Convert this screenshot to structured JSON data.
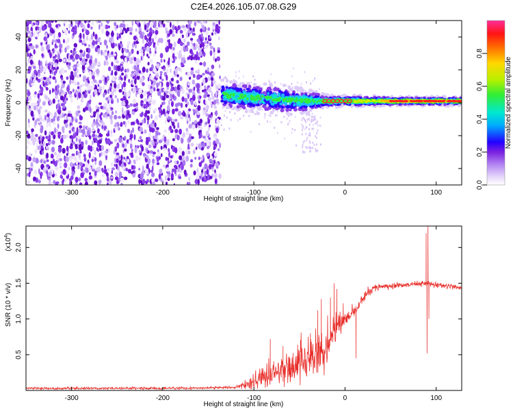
{
  "figure_title": "C2E4.2026.105.07.08.G29",
  "colors": {
    "snr_line": "#e8302c",
    "spectrogram_noise": "#7a22e0",
    "frame": "#000000"
  },
  "chart_data": [
    {
      "type": "heatmap",
      "title": "C2E4.2026.105.07.08.G29",
      "xlabel": "Height of straight line (km)",
      "ylabel": "Frequency (Hz)",
      "xlim": [
        -350,
        128
      ],
      "ylim": [
        -50,
        50
      ],
      "xticks": [
        -300,
        -200,
        -100,
        0,
        100
      ],
      "yticks": [
        -40,
        -20,
        0,
        20,
        40
      ],
      "xtick_labels": [
        "-300",
        "-200",
        "-100",
        "0",
        "100"
      ],
      "ytick_labels": [
        "-40",
        "-20",
        "0",
        "20",
        "40"
      ],
      "noise_region_x": [
        -350,
        -137
      ],
      "signal_center_hz": [
        {
          "x": -135,
          "f": 5
        },
        {
          "x": -100,
          "f": 3
        },
        {
          "x": -70,
          "f": 2
        },
        {
          "x": -40,
          "f": 1
        },
        {
          "x": -20,
          "f": 1
        },
        {
          "x": 0,
          "f": 1
        },
        {
          "x": 50,
          "f": 1
        },
        {
          "x": 128,
          "f": 1
        }
      ],
      "signal_halfwidth_hz": [
        {
          "x": -135,
          "w": 5
        },
        {
          "x": -100,
          "w": 5
        },
        {
          "x": -70,
          "w": 5
        },
        {
          "x": -40,
          "w": 4
        },
        {
          "x": -20,
          "w": 2
        },
        {
          "x": 0,
          "w": 2
        },
        {
          "x": 50,
          "w": 1.5
        },
        {
          "x": 128,
          "w": 1.5
        }
      ],
      "colorbar": {
        "label": "Normalized spectral amplitude",
        "range": [
          0,
          1
        ],
        "ticks": [
          0.0,
          0.2,
          0.4,
          0.6,
          0.8
        ],
        "tick_labels": [
          "0.0",
          "0.2",
          "0.4",
          "0.6",
          "0.8"
        ]
      }
    },
    {
      "type": "line",
      "xlabel": "Height of straight line (km)",
      "ylabel": "SNR (10 * v/v)",
      "y_multiplier": "(x10",
      "y_multiplier_exp": "4",
      "y_multiplier_close": ")",
      "xlim": [
        -350,
        128
      ],
      "ylim": [
        0,
        2.3
      ],
      "xticks": [
        -300,
        -200,
        -100,
        0,
        100
      ],
      "yticks": [
        0.5,
        1.0,
        1.5,
        2.0
      ],
      "xtick_labels": [
        "-300",
        "-200",
        "-100",
        "0",
        "100"
      ],
      "ytick_labels": [
        "0.5",
        "1.0",
        "1.5",
        "2.0"
      ],
      "series": [
        {
          "name": "SNR",
          "x": [
            -350,
            -200,
            -120,
            -100,
            -90,
            -80,
            -70,
            -60,
            -50,
            -40,
            -30,
            -20,
            -15,
            -10,
            -5,
            0,
            5,
            10,
            15,
            20,
            25,
            30,
            40,
            50,
            60,
            70,
            80,
            85,
            90,
            95,
            100,
            110,
            120,
            128
          ],
          "mean": [
            0.03,
            0.03,
            0.04,
            0.12,
            0.18,
            0.22,
            0.26,
            0.3,
            0.36,
            0.42,
            0.5,
            0.58,
            0.75,
            0.88,
            0.95,
            1.0,
            1.05,
            1.08,
            1.18,
            1.3,
            1.38,
            1.42,
            1.45,
            1.46,
            1.47,
            1.48,
            1.49,
            1.5,
            1.5,
            1.48,
            1.47,
            1.46,
            1.45,
            1.44
          ],
          "noise": [
            0.01,
            0.01,
            0.01,
            0.06,
            0.08,
            0.1,
            0.11,
            0.12,
            0.14,
            0.15,
            0.16,
            0.16,
            0.12,
            0.09,
            0.08,
            0.06,
            0.06,
            0.05,
            0.05,
            0.04,
            0.03,
            0.03,
            0.02,
            0.02,
            0.02,
            0.02,
            0.02,
            0.02,
            0.03,
            0.02,
            0.02,
            0.02,
            0.02,
            0.02
          ],
          "spikes": [
            {
              "x": -82,
              "y": 0.72
            },
            {
              "x": -68,
              "y": 0.62
            },
            {
              "x": -52,
              "y": 0.64
            },
            {
              "x": -38,
              "y": 0.8
            },
            {
              "x": -30,
              "y": 1.12
            },
            {
              "x": -26,
              "y": 1.28
            },
            {
              "x": -16,
              "y": 1.3
            },
            {
              "x": -12,
              "y": 1.5
            },
            {
              "x": -9,
              "y": 1.42
            },
            {
              "x": -2,
              "y": 1.22
            },
            {
              "x": 12,
              "y": 0.45
            },
            {
              "x": 89,
              "y": 2.2
            },
            {
              "x": 90,
              "y": 0.52
            },
            {
              "x": 91,
              "y": 2.32
            },
            {
              "x": 92,
              "y": 1.0
            }
          ]
        }
      ]
    }
  ]
}
